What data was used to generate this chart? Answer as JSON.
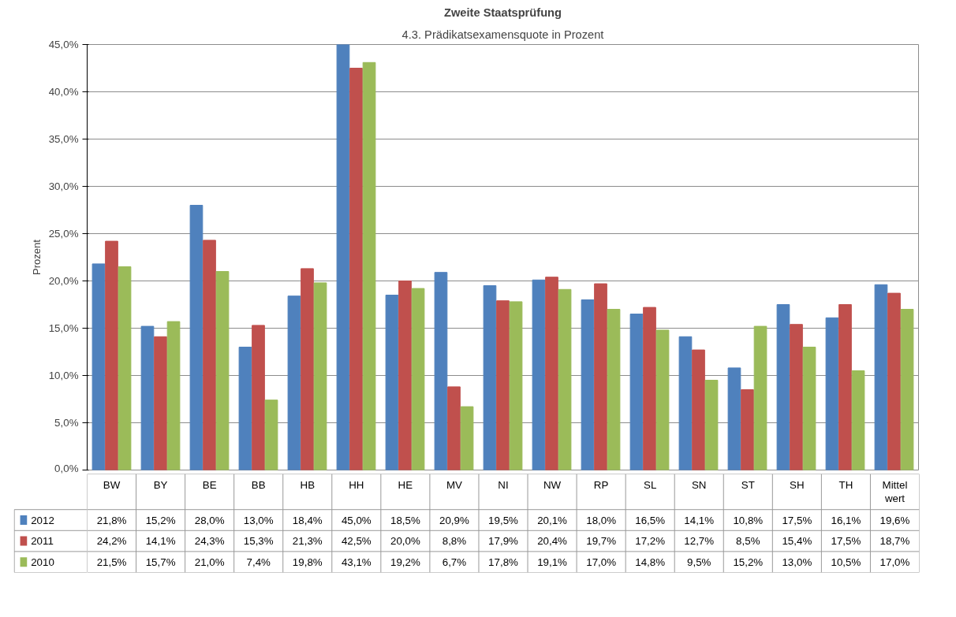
{
  "chart_data": {
    "type": "bar",
    "title": "Zweite Staatsprüfung",
    "subtitle": "4.3. Prädikatsexamensquote in Prozent",
    "ylabel": "Prozent",
    "categories": [
      "BW",
      "BY",
      "BE",
      "BB",
      "HB",
      "HH",
      "HE",
      "MV",
      "NI",
      "NW",
      "RP",
      "SL",
      "SN",
      "ST",
      "SH",
      "TH",
      "Mittel\nwert"
    ],
    "series": [
      {
        "name": "2012",
        "color": "#4f81bd",
        "values": [
          21.8,
          15.2,
          28.0,
          13.0,
          18.4,
          45.0,
          18.5,
          20.9,
          19.5,
          20.1,
          18.0,
          16.5,
          14.1,
          10.8,
          17.5,
          16.1,
          19.6
        ],
        "value_labels": [
          "21,8%",
          "15,2%",
          "28,0%",
          "13,0%",
          "18,4%",
          "45,0%",
          "18,5%",
          "20,9%",
          "19,5%",
          "20,1%",
          "18,0%",
          "16,5%",
          "14,1%",
          "10,8%",
          "17,5%",
          "16,1%",
          "19,6%"
        ]
      },
      {
        "name": "2011",
        "color": "#c0504d",
        "values": [
          24.2,
          14.1,
          24.3,
          15.3,
          21.3,
          42.5,
          20.0,
          8.8,
          17.9,
          20.4,
          19.7,
          17.2,
          12.7,
          8.5,
          15.4,
          17.5,
          18.7
        ],
        "value_labels": [
          "24,2%",
          "14,1%",
          "24,3%",
          "15,3%",
          "21,3%",
          "42,5%",
          "20,0%",
          "8,8%",
          "17,9%",
          "20,4%",
          "19,7%",
          "17,2%",
          "12,7%",
          "8,5%",
          "15,4%",
          "17,5%",
          "18,7%"
        ]
      },
      {
        "name": "2010",
        "color": "#9bbb59",
        "values": [
          21.5,
          15.7,
          21.0,
          7.4,
          19.8,
          43.1,
          19.2,
          6.7,
          17.8,
          19.1,
          17.0,
          14.8,
          9.5,
          15.2,
          13.0,
          10.5,
          17.0
        ],
        "value_labels": [
          "21,5%",
          "15,7%",
          "21,0%",
          "7,4%",
          "19,8%",
          "43,1%",
          "19,2%",
          "6,7%",
          "17,8%",
          "19,1%",
          "17,0%",
          "14,8%",
          "9,5%",
          "15,2%",
          "13,0%",
          "10,5%",
          "17,0%"
        ]
      }
    ],
    "ylim": [
      0,
      45
    ],
    "yticks": [
      {
        "value": 0,
        "label": "0,0%"
      },
      {
        "value": 5,
        "label": "5,0%"
      },
      {
        "value": 10,
        "label": "10,0%"
      },
      {
        "value": 15,
        "label": "15,0%"
      },
      {
        "value": 20,
        "label": "20,0%"
      },
      {
        "value": 25,
        "label": "25,0%"
      },
      {
        "value": 30,
        "label": "30,0%"
      },
      {
        "value": 35,
        "label": "35,0%"
      },
      {
        "value": 40,
        "label": "40,0%"
      },
      {
        "value": 45,
        "label": "45,0%"
      }
    ],
    "grid": "y",
    "legend": "bottom left"
  }
}
